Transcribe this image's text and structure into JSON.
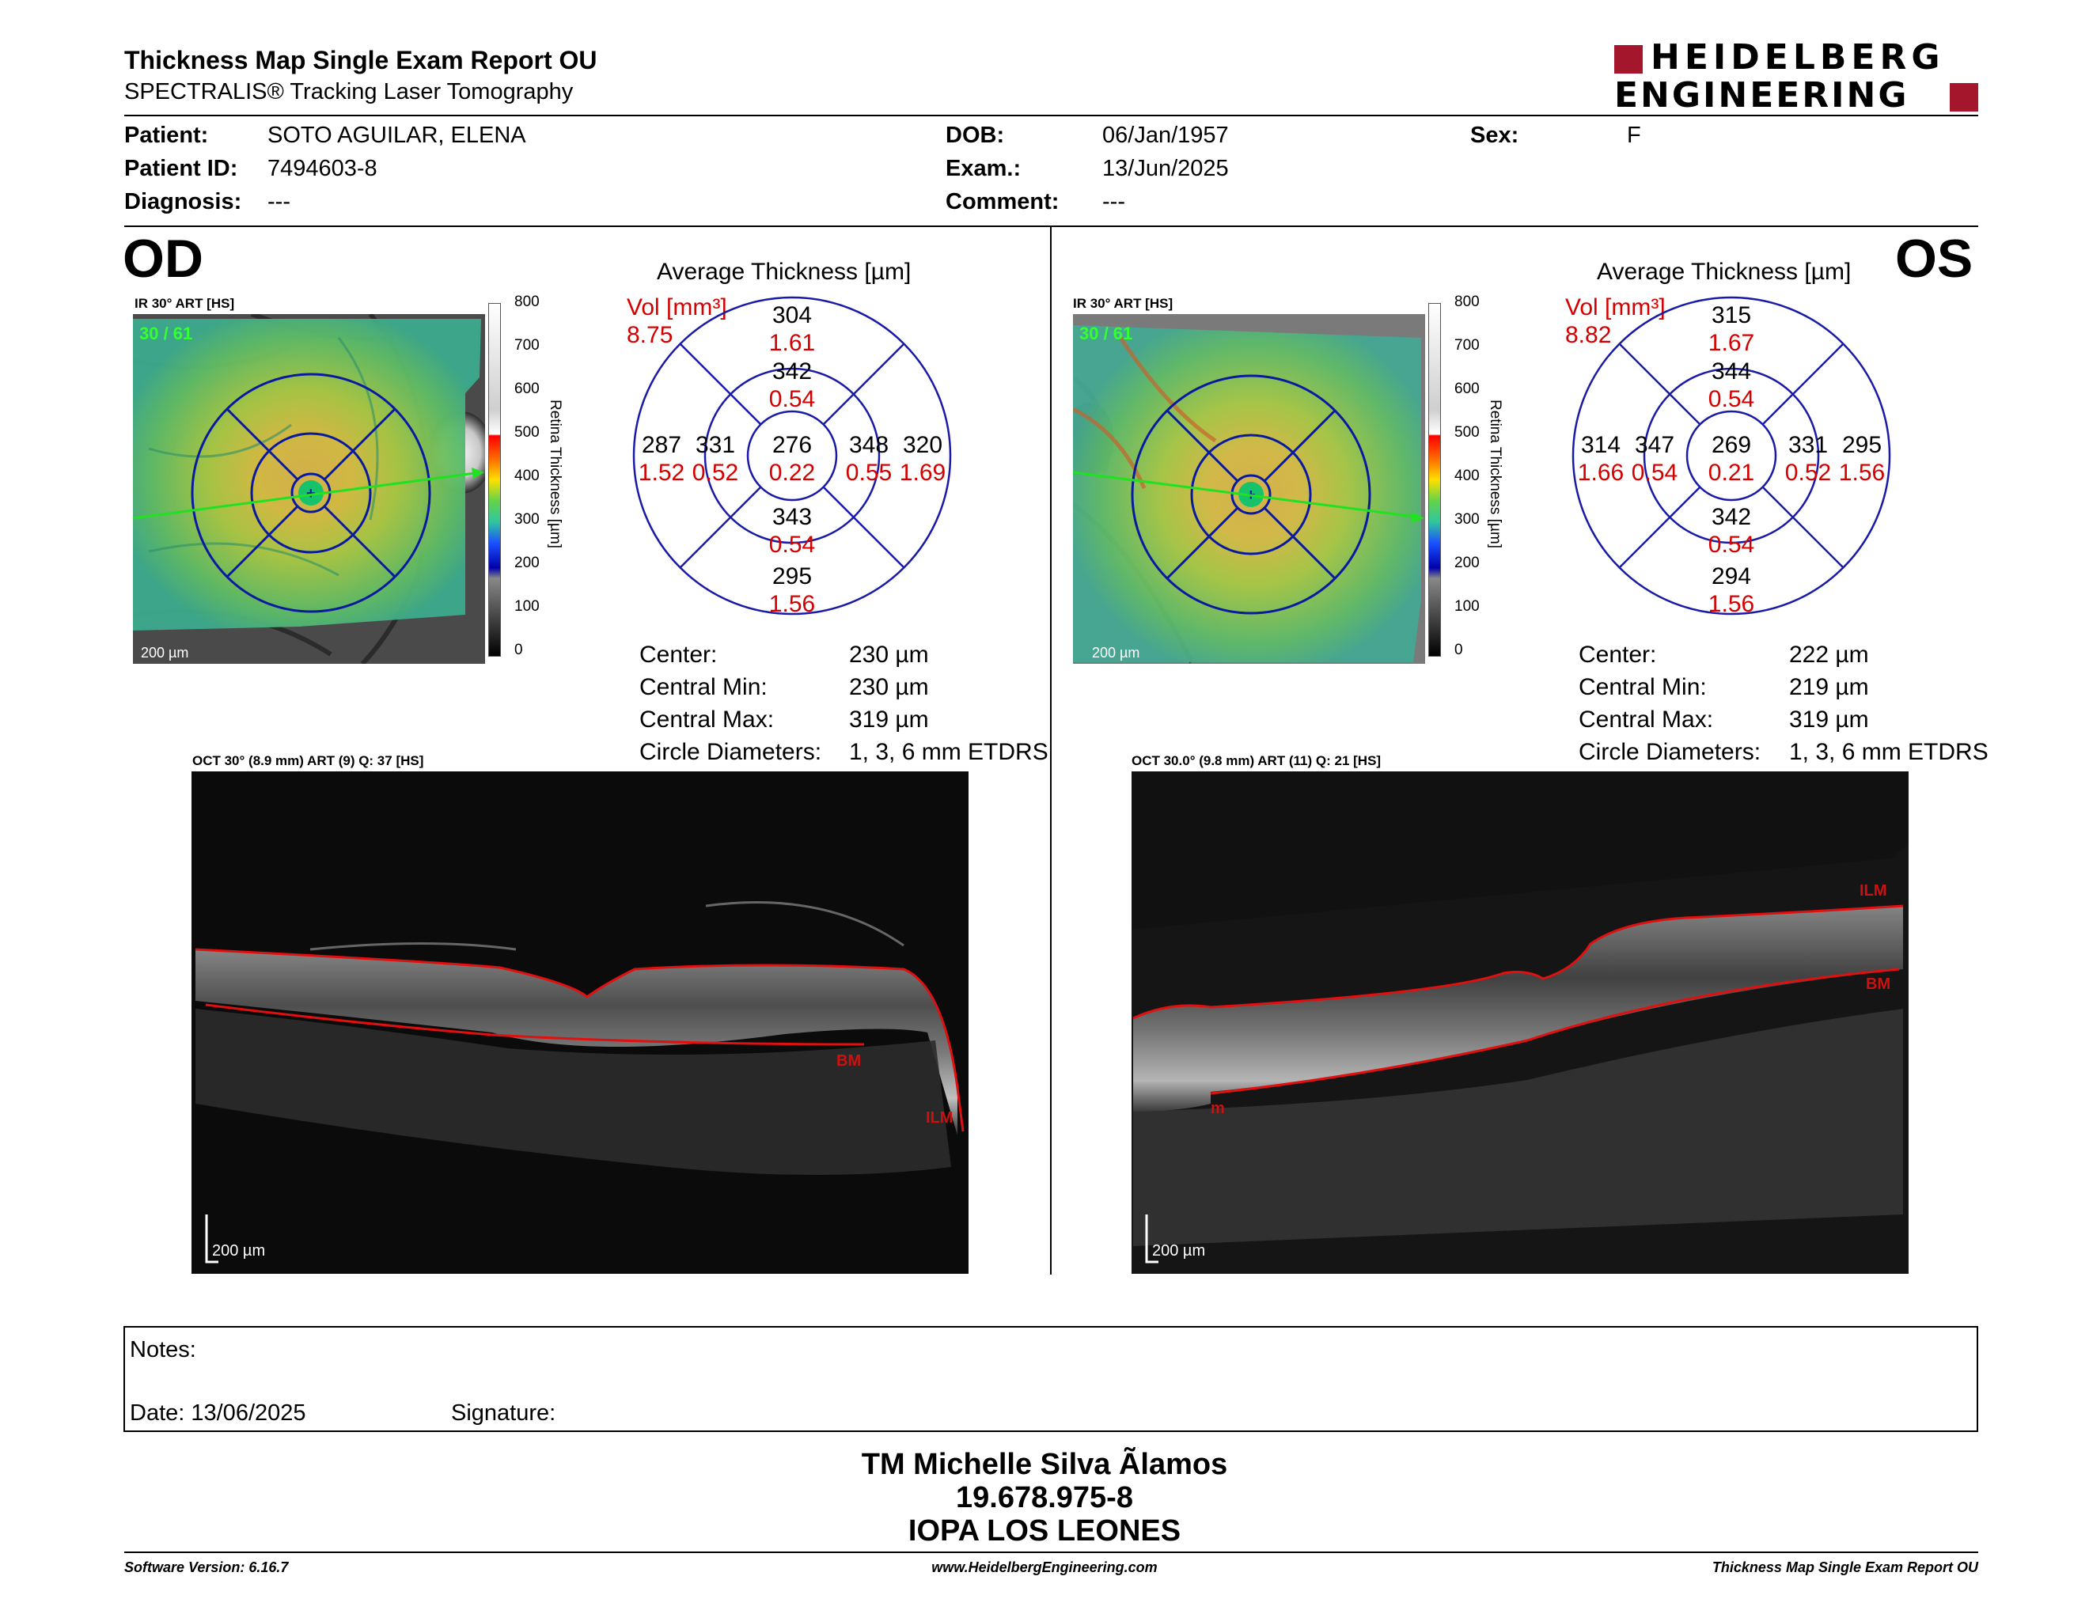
{
  "report": {
    "title": "Thickness Map Single Exam Report OU",
    "subtitle": "SPECTRALIS® Tracking Laser Tomography",
    "logo_line1": "HEIDELBERG",
    "logo_line2": "ENGINEERING",
    "brand_color": "#a4162c"
  },
  "patient": {
    "patient_label": "Patient:",
    "patient_value": "SOTO AGUILAR, ELENA",
    "id_label": "Patient ID:",
    "id_value": "7494603-8",
    "diagnosis_label": "Diagnosis:",
    "diagnosis_value": "---",
    "dob_label": "DOB:",
    "dob_value": "06/Jan/1957",
    "exam_label": "Exam.:",
    "exam_value": "13/Jun/2025",
    "comment_label": "Comment:",
    "comment_value": "---",
    "sex_label": "Sex:",
    "sex_value": "F"
  },
  "colorbar": {
    "ticks": [
      "800",
      "700",
      "600",
      "500",
      "400",
      "300",
      "200",
      "100",
      "0"
    ],
    "label": "Retina  Thickness [µm]"
  },
  "od": {
    "eye": "OD",
    "ir_label": "IR 30° ART [HS]",
    "frames": "30 / 61",
    "scale": "200 µm",
    "grid_title": "Average Thickness [µm]",
    "vol_label": "Vol [mm³]",
    "vol_value": "8.75",
    "sectors": {
      "outer_superior": {
        "t": "304",
        "v": "1.61"
      },
      "inner_superior": {
        "t": "342",
        "v": "0.54"
      },
      "outer_temporal": {
        "t": "287",
        "v": "1.52"
      },
      "inner_temporal": {
        "t": "331",
        "v": "0.52"
      },
      "center": {
        "t": "276",
        "v": "0.22"
      },
      "inner_nasal": {
        "t": "348",
        "v": "0.55"
      },
      "outer_nasal": {
        "t": "320",
        "v": "1.69"
      },
      "inner_inferior": {
        "t": "343",
        "v": "0.54"
      },
      "outer_inferior": {
        "t": "295",
        "v": "1.56"
      }
    },
    "stats": [
      {
        "label": "Center:",
        "value": "230 µm"
      },
      {
        "label": "Central Min:",
        "value": "230 µm"
      },
      {
        "label": "Central Max:",
        "value": "319 µm"
      },
      {
        "label": "Circle Diameters:",
        "value": "1, 3, 6 mm ETDRS"
      }
    ],
    "oct_label": "OCT 30° (8.9 mm) ART (9) Q: 37 [HS]",
    "oct_scale": "200 µm",
    "layer_ilm": "ILM",
    "layer_bm": "BM"
  },
  "os": {
    "eye": "OS",
    "ir_label": "IR 30° ART [HS]",
    "frames": "30 / 61",
    "scale": "200 µm",
    "grid_title": "Average Thickness [µm]",
    "vol_label": "Vol [mm³]",
    "vol_value": "8.82",
    "sectors": {
      "outer_superior": {
        "t": "315",
        "v": "1.67"
      },
      "inner_superior": {
        "t": "344",
        "v": "0.54"
      },
      "outer_temporal": {
        "t": "314",
        "v": "1.66"
      },
      "inner_temporal": {
        "t": "347",
        "v": "0.54"
      },
      "center": {
        "t": "269",
        "v": "0.21"
      },
      "inner_nasal": {
        "t": "331",
        "v": "0.52"
      },
      "outer_nasal": {
        "t": "295",
        "v": "1.56"
      },
      "inner_inferior": {
        "t": "342",
        "v": "0.54"
      },
      "outer_inferior": {
        "t": "294",
        "v": "1.56"
      }
    },
    "stats": [
      {
        "label": "Center:",
        "value": "222 µm"
      },
      {
        "label": "Central Min:",
        "value": "219 µm"
      },
      {
        "label": "Central Max:",
        "value": "319 µm"
      },
      {
        "label": "Circle Diameters:",
        "value": "1, 3, 6 mm ETDRS"
      }
    ],
    "oct_label": "OCT 30.0° (9.8 mm) ART (11) Q: 21 [HS]",
    "oct_scale": "200 µm",
    "layer_ilm": "ILM",
    "layer_bm": "BM",
    "layer_m": "m"
  },
  "notes": {
    "notes_label": "Notes:",
    "date_label": "Date: 13/06/2025",
    "signature_label": "Signature:"
  },
  "signer": {
    "name": "TM Michelle Silva Ãlamos",
    "rut": "19.678.975-8",
    "clinic": "IOPA LOS LEONES"
  },
  "footer": {
    "software": "Software Version: 6.16.7",
    "website": "www.HeidelbergEngineering.com",
    "report_name": "Thickness Map Single Exam Report OU"
  }
}
